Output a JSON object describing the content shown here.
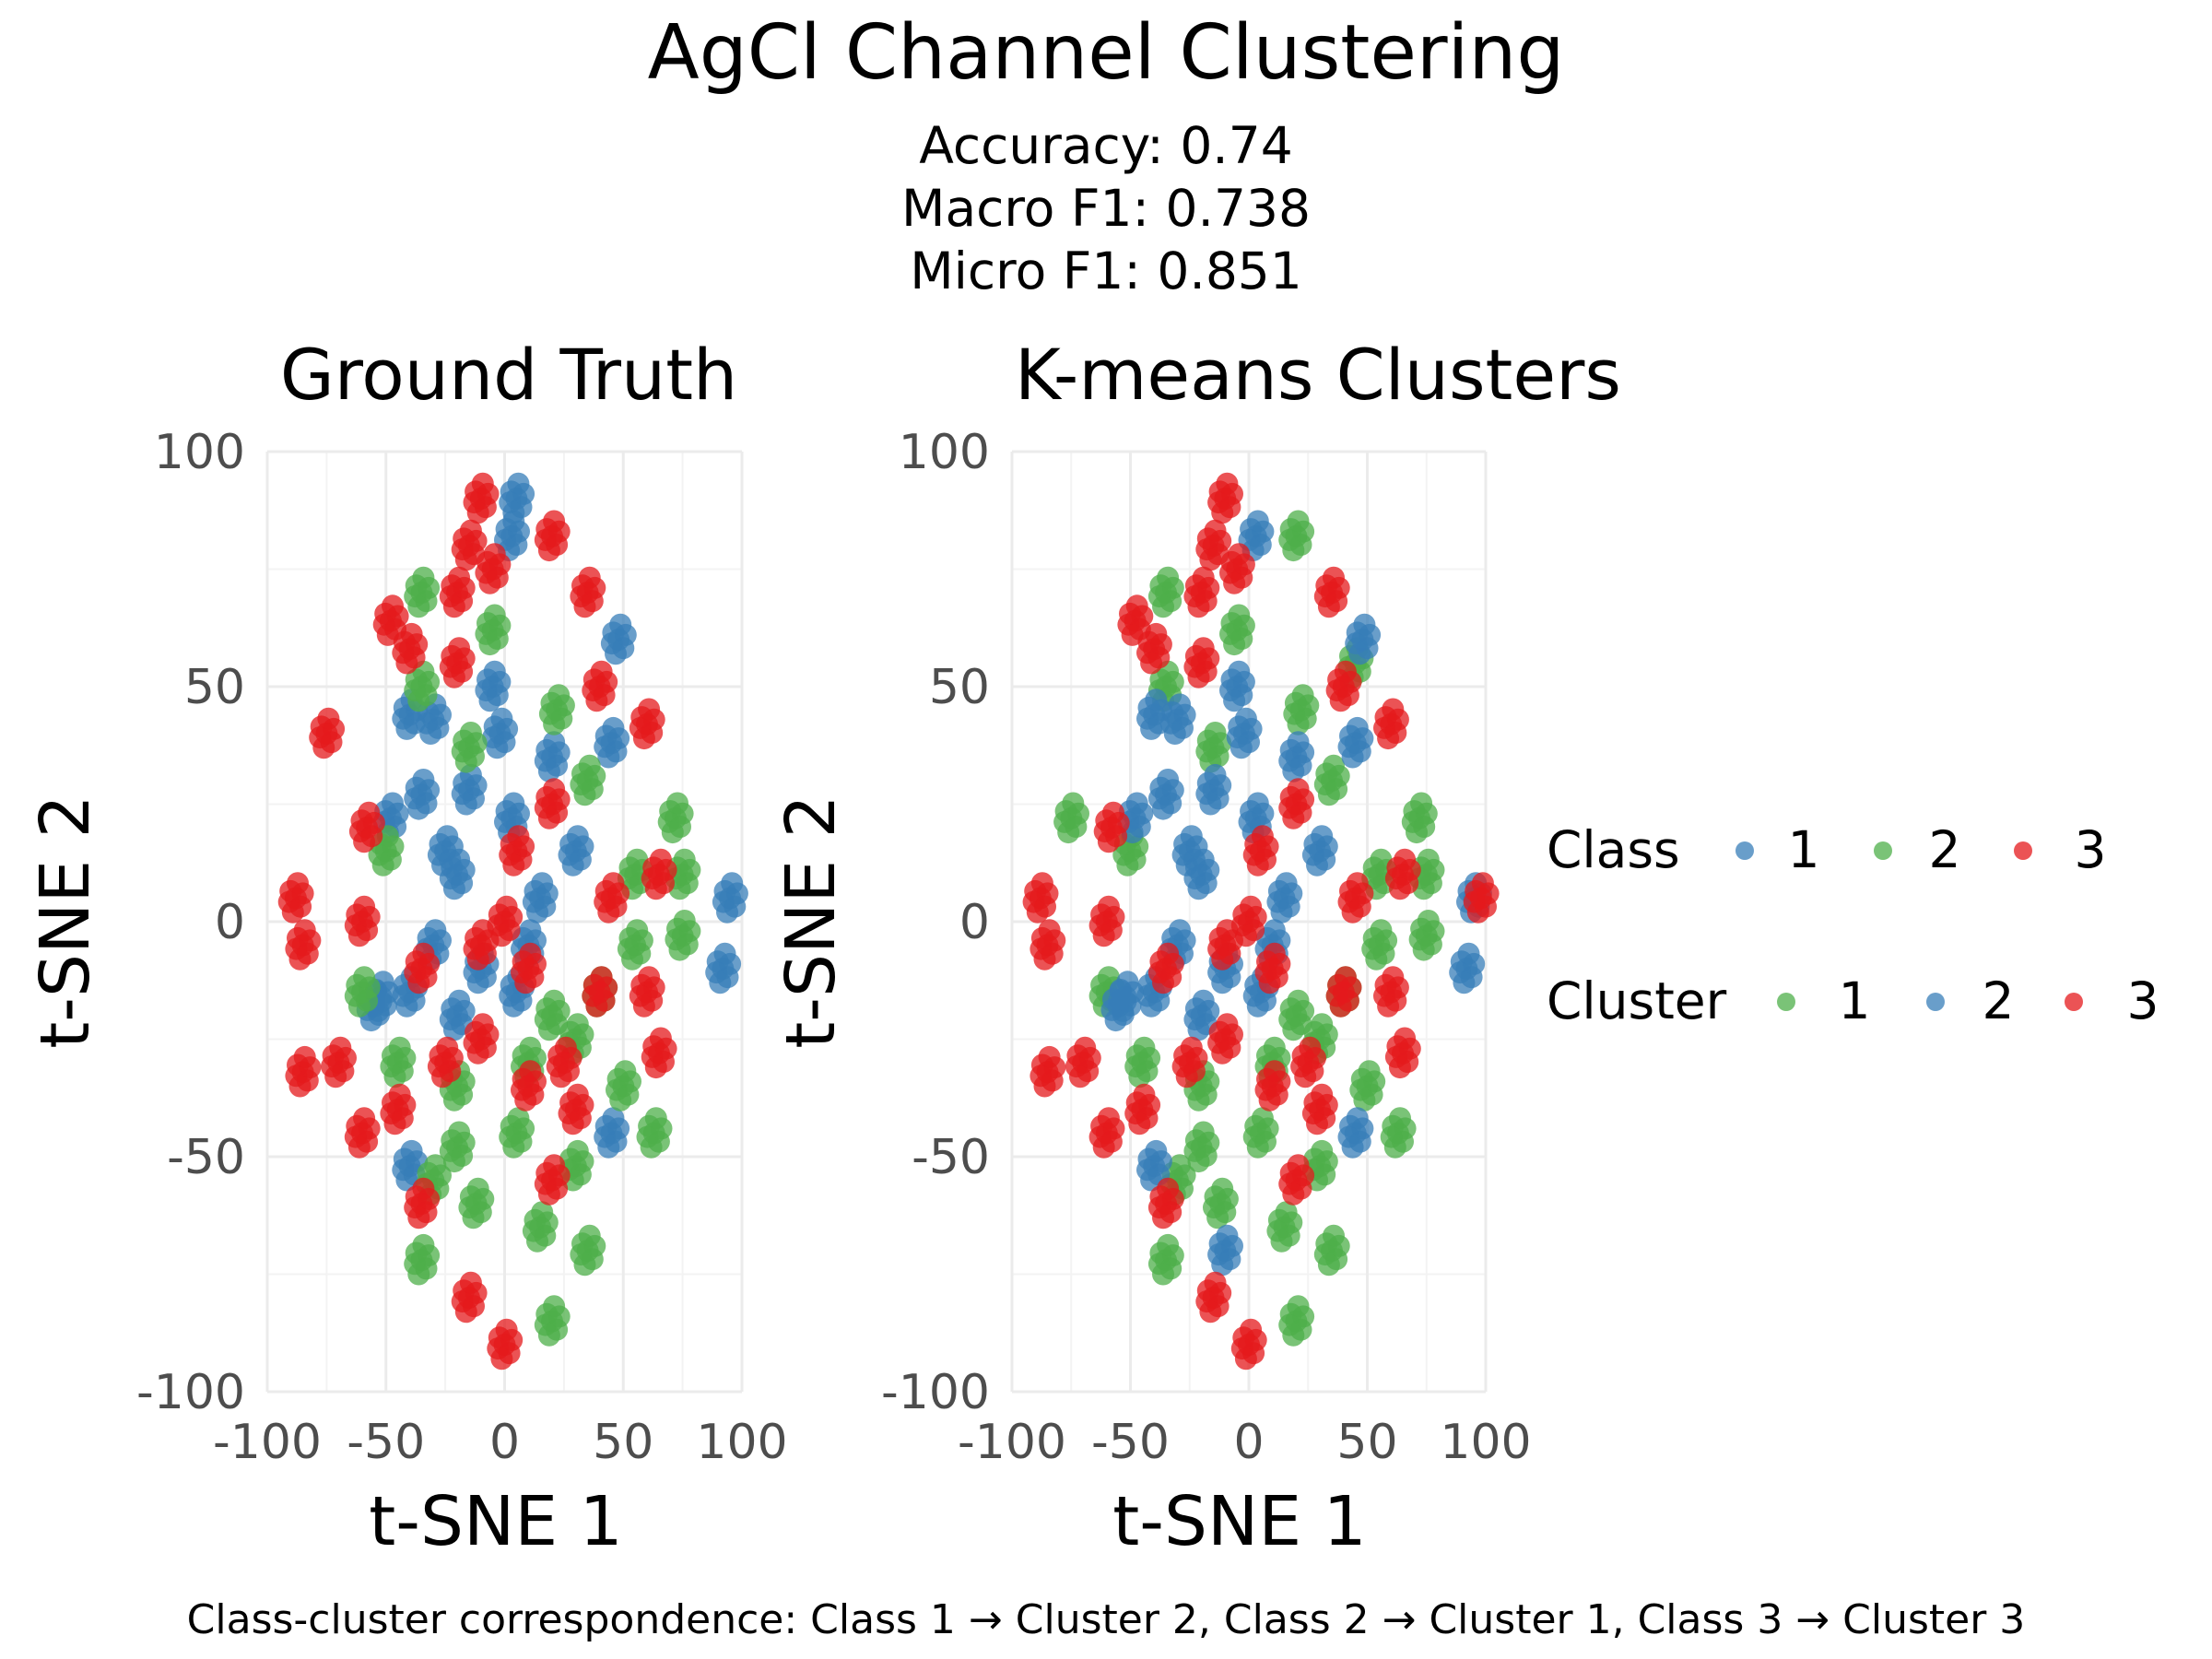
{
  "figure": {
    "title": "AgCl Channel Clustering",
    "subtitle_lines": [
      "Accuracy: 0.74",
      "Macro F1: 0.738",
      "Micro F1: 0.851"
    ],
    "caption": "Class-cluster correspondence: Class 1 → Cluster 2, Class 2 → Cluster 1, Class 3 → Cluster 3"
  },
  "legend": {
    "placement": "right",
    "groups": [
      {
        "title": "Class",
        "entries": [
          {
            "label": "1",
            "color": "#377eb8"
          },
          {
            "label": "2",
            "color": "#4daf4a"
          },
          {
            "label": "3",
            "color": "#e41a1c"
          }
        ]
      },
      {
        "title": "Cluster",
        "entries": [
          {
            "label": "1",
            "color": "#4daf4a"
          },
          {
            "label": "2",
            "color": "#377eb8"
          },
          {
            "label": "3",
            "color": "#e41a1c"
          }
        ]
      }
    ]
  },
  "chart_data": [
    {
      "type": "scatter",
      "title": "Ground Truth",
      "xlabel": "t-SNE 1",
      "ylabel": "t-SNE 2",
      "xlim": [
        -100,
        100
      ],
      "ylim": [
        -100,
        100
      ],
      "xticks": [
        -100,
        -50,
        0,
        50,
        100
      ],
      "yticks": [
        -100,
        -50,
        0,
        50,
        100
      ],
      "grid": true,
      "series": [
        {
          "name": "1",
          "color": "#377eb8",
          "points": [
            [
              5,
              90
            ],
            [
              3,
              82
            ],
            [
              -40,
              44
            ],
            [
              -30,
              43
            ],
            [
              -48,
              22
            ],
            [
              -35,
              27
            ],
            [
              -15,
              28
            ],
            [
              -2,
              40
            ],
            [
              3,
              22
            ],
            [
              -20,
              10
            ],
            [
              -30,
              -5
            ],
            [
              -40,
              -15
            ],
            [
              -20,
              -20
            ],
            [
              -10,
              -10
            ],
            [
              5,
              -15
            ],
            [
              15,
              5
            ],
            [
              30,
              15
            ],
            [
              20,
              35
            ],
            [
              45,
              38
            ],
            [
              48,
              60
            ],
            [
              95,
              5
            ],
            [
              92,
              -10
            ],
            [
              -40,
              -52
            ],
            [
              45,
              -45
            ],
            [
              -52,
              -16
            ],
            [
              -5,
              50
            ],
            [
              10,
              -5
            ],
            [
              -25,
              15
            ],
            [
              -55,
              -18
            ]
          ]
        },
        {
          "name": "2",
          "color": "#4daf4a",
          "points": [
            [
              -35,
              70
            ],
            [
              -5,
              62
            ],
            [
              -35,
              50
            ],
            [
              -15,
              37
            ],
            [
              22,
              45
            ],
            [
              35,
              30
            ],
            [
              72,
              22
            ],
            [
              55,
              10
            ],
            [
              75,
              10
            ],
            [
              75,
              -3
            ],
            [
              55,
              -5
            ],
            [
              40,
              -15
            ],
            [
              30,
              -25
            ],
            [
              50,
              -35
            ],
            [
              63,
              -45
            ],
            [
              20,
              -20
            ],
            [
              -60,
              -15
            ],
            [
              -45,
              -30
            ],
            [
              -30,
              -55
            ],
            [
              -35,
              -72
            ],
            [
              -20,
              -48
            ],
            [
              5,
              -45
            ],
            [
              15,
              -65
            ],
            [
              35,
              -70
            ],
            [
              20,
              -85
            ],
            [
              -20,
              -35
            ],
            [
              10,
              -30
            ],
            [
              30,
              -52
            ],
            [
              -50,
              15
            ],
            [
              -12,
              -60
            ]
          ]
        },
        {
          "name": "3",
          "color": "#e41a1c",
          "points": [
            [
              -10,
              90
            ],
            [
              20,
              82
            ],
            [
              -15,
              80
            ],
            [
              -20,
              70
            ],
            [
              -5,
              75
            ],
            [
              35,
              70
            ],
            [
              -48,
              64
            ],
            [
              -40,
              58
            ],
            [
              -20,
              55
            ],
            [
              40,
              50
            ],
            [
              60,
              42
            ],
            [
              -75,
              40
            ],
            [
              -58,
              20
            ],
            [
              5,
              15
            ],
            [
              20,
              25
            ],
            [
              -88,
              5
            ],
            [
              -85,
              -5
            ],
            [
              -60,
              0
            ],
            [
              0,
              0
            ],
            [
              -10,
              -5
            ],
            [
              10,
              -10
            ],
            [
              45,
              5
            ],
            [
              65,
              10
            ],
            [
              -35,
              -10
            ],
            [
              -10,
              -25
            ],
            [
              25,
              -30
            ],
            [
              -70,
              -30
            ],
            [
              -85,
              -32
            ],
            [
              -60,
              -45
            ],
            [
              -45,
              -40
            ],
            [
              -25,
              -30
            ],
            [
              -35,
              -60
            ],
            [
              10,
              -35
            ],
            [
              30,
              -40
            ],
            [
              65,
              -28
            ],
            [
              60,
              -15
            ],
            [
              20,
              -55
            ],
            [
              -15,
              -80
            ],
            [
              0,
              -90
            ],
            [
              40,
              -15
            ]
          ]
        }
      ]
    },
    {
      "type": "scatter",
      "title": "K-means Clusters",
      "xlabel": "t-SNE 1",
      "ylabel": "t-SNE 2",
      "xlim": [
        -100,
        100
      ],
      "ylim": [
        -100,
        100
      ],
      "xticks": [
        -100,
        -50,
        0,
        50,
        100
      ],
      "yticks": [
        -100,
        -50,
        0,
        50,
        100
      ],
      "grid": true,
      "series": [
        {
          "name": "1",
          "color": "#4daf4a",
          "points": [
            [
              20,
              82
            ],
            [
              -35,
              70
            ],
            [
              -5,
              62
            ],
            [
              -35,
              50
            ],
            [
              22,
              45
            ],
            [
              35,
              30
            ],
            [
              72,
              22
            ],
            [
              55,
              10
            ],
            [
              75,
              10
            ],
            [
              75,
              -3
            ],
            [
              55,
              -5
            ],
            [
              40,
              -15
            ],
            [
              30,
              -25
            ],
            [
              50,
              -35
            ],
            [
              63,
              -45
            ],
            [
              20,
              -20
            ],
            [
              -75,
              22
            ],
            [
              -60,
              -15
            ],
            [
              -45,
              -30
            ],
            [
              -30,
              -55
            ],
            [
              -35,
              -72
            ],
            [
              -20,
              -48
            ],
            [
              5,
              -45
            ],
            [
              15,
              -65
            ],
            [
              35,
              -70
            ],
            [
              20,
              -85
            ],
            [
              -20,
              -35
            ],
            [
              10,
              -30
            ],
            [
              30,
              -52
            ],
            [
              -50,
              15
            ],
            [
              -12,
              -60
            ],
            [
              -15,
              37
            ],
            [
              45,
              55
            ]
          ]
        },
        {
          "name": "2",
          "color": "#377eb8",
          "points": [
            [
              3,
              82
            ],
            [
              -40,
              44
            ],
            [
              -30,
              43
            ],
            [
              -48,
              22
            ],
            [
              -35,
              27
            ],
            [
              -15,
              28
            ],
            [
              -2,
              40
            ],
            [
              3,
              22
            ],
            [
              -20,
              10
            ],
            [
              -30,
              -5
            ],
            [
              -40,
              -15
            ],
            [
              -20,
              -20
            ],
            [
              -10,
              -10
            ],
            [
              5,
              -15
            ],
            [
              15,
              5
            ],
            [
              30,
              15
            ],
            [
              20,
              35
            ],
            [
              45,
              38
            ],
            [
              48,
              60
            ],
            [
              95,
              5
            ],
            [
              92,
              -10
            ],
            [
              -40,
              -52
            ],
            [
              45,
              -45
            ],
            [
              -52,
              -16
            ],
            [
              -5,
              50
            ],
            [
              10,
              -5
            ],
            [
              -25,
              15
            ],
            [
              -55,
              -18
            ],
            [
              -10,
              -70
            ]
          ]
        },
        {
          "name": "3",
          "color": "#e41a1c",
          "points": [
            [
              -10,
              90
            ],
            [
              -15,
              80
            ],
            [
              -20,
              70
            ],
            [
              -5,
              75
            ],
            [
              35,
              70
            ],
            [
              -48,
              64
            ],
            [
              -40,
              58
            ],
            [
              -20,
              55
            ],
            [
              40,
              50
            ],
            [
              60,
              42
            ],
            [
              -58,
              20
            ],
            [
              5,
              15
            ],
            [
              20,
              25
            ],
            [
              -88,
              5
            ],
            [
              -85,
              -5
            ],
            [
              -60,
              0
            ],
            [
              0,
              0
            ],
            [
              -10,
              -5
            ],
            [
              10,
              -10
            ],
            [
              45,
              5
            ],
            [
              65,
              10
            ],
            [
              -35,
              -10
            ],
            [
              -10,
              -25
            ],
            [
              25,
              -30
            ],
            [
              -70,
              -30
            ],
            [
              -85,
              -32
            ],
            [
              -60,
              -45
            ],
            [
              -45,
              -40
            ],
            [
              -25,
              -30
            ],
            [
              -35,
              -60
            ],
            [
              10,
              -35
            ],
            [
              30,
              -40
            ],
            [
              65,
              -28
            ],
            [
              60,
              -15
            ],
            [
              20,
              -55
            ],
            [
              -15,
              -80
            ],
            [
              0,
              -90
            ],
            [
              40,
              -15
            ],
            [
              98,
              5
            ]
          ]
        }
      ]
    }
  ]
}
